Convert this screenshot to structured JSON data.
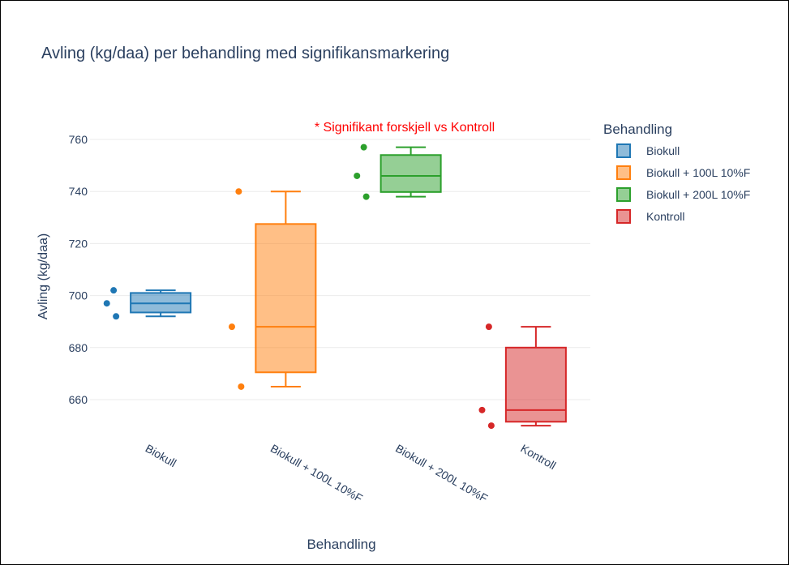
{
  "chart_data": {
    "type": "box",
    "title": "Avling (kg/daa) per behandling med signifikansmarkering",
    "xlabel": "Behandling",
    "ylabel": "Avling (kg/daa)",
    "ylim": [
      648,
      766
    ],
    "yticks": [
      660,
      680,
      700,
      720,
      740,
      760
    ],
    "grid": true,
    "annotation": "* Signifikant forskjell vs Kontroll",
    "legend": {
      "title": "Behandling",
      "placement": "right"
    },
    "categories": [
      "Biokull",
      "Biokull + 100L 10%F",
      "Biokull + 200L 10%F",
      "Kontroll"
    ],
    "series": [
      {
        "name": "Biokull",
        "color": "#1f77b4",
        "points": [
          702,
          697,
          692
        ],
        "min": 692,
        "q1": 693.5,
        "median": 697,
        "q3": 701,
        "max": 702
      },
      {
        "name": "Biokull + 100L 10%F",
        "color": "#ff7f0e",
        "points": [
          740,
          688,
          665
        ],
        "min": 665,
        "q1": 670.5,
        "median": 688,
        "q3": 727.5,
        "max": 740
      },
      {
        "name": "Biokull + 200L 10%F",
        "color": "#2ca02c",
        "points": [
          757,
          746,
          738
        ],
        "min": 738,
        "q1": 739.8,
        "median": 746,
        "q3": 754,
        "max": 757
      },
      {
        "name": "Kontroll",
        "color": "#d62728",
        "points": [
          688,
          656,
          650
        ],
        "min": 650,
        "q1": 651.5,
        "median": 656,
        "q3": 680,
        "max": 688
      }
    ]
  }
}
